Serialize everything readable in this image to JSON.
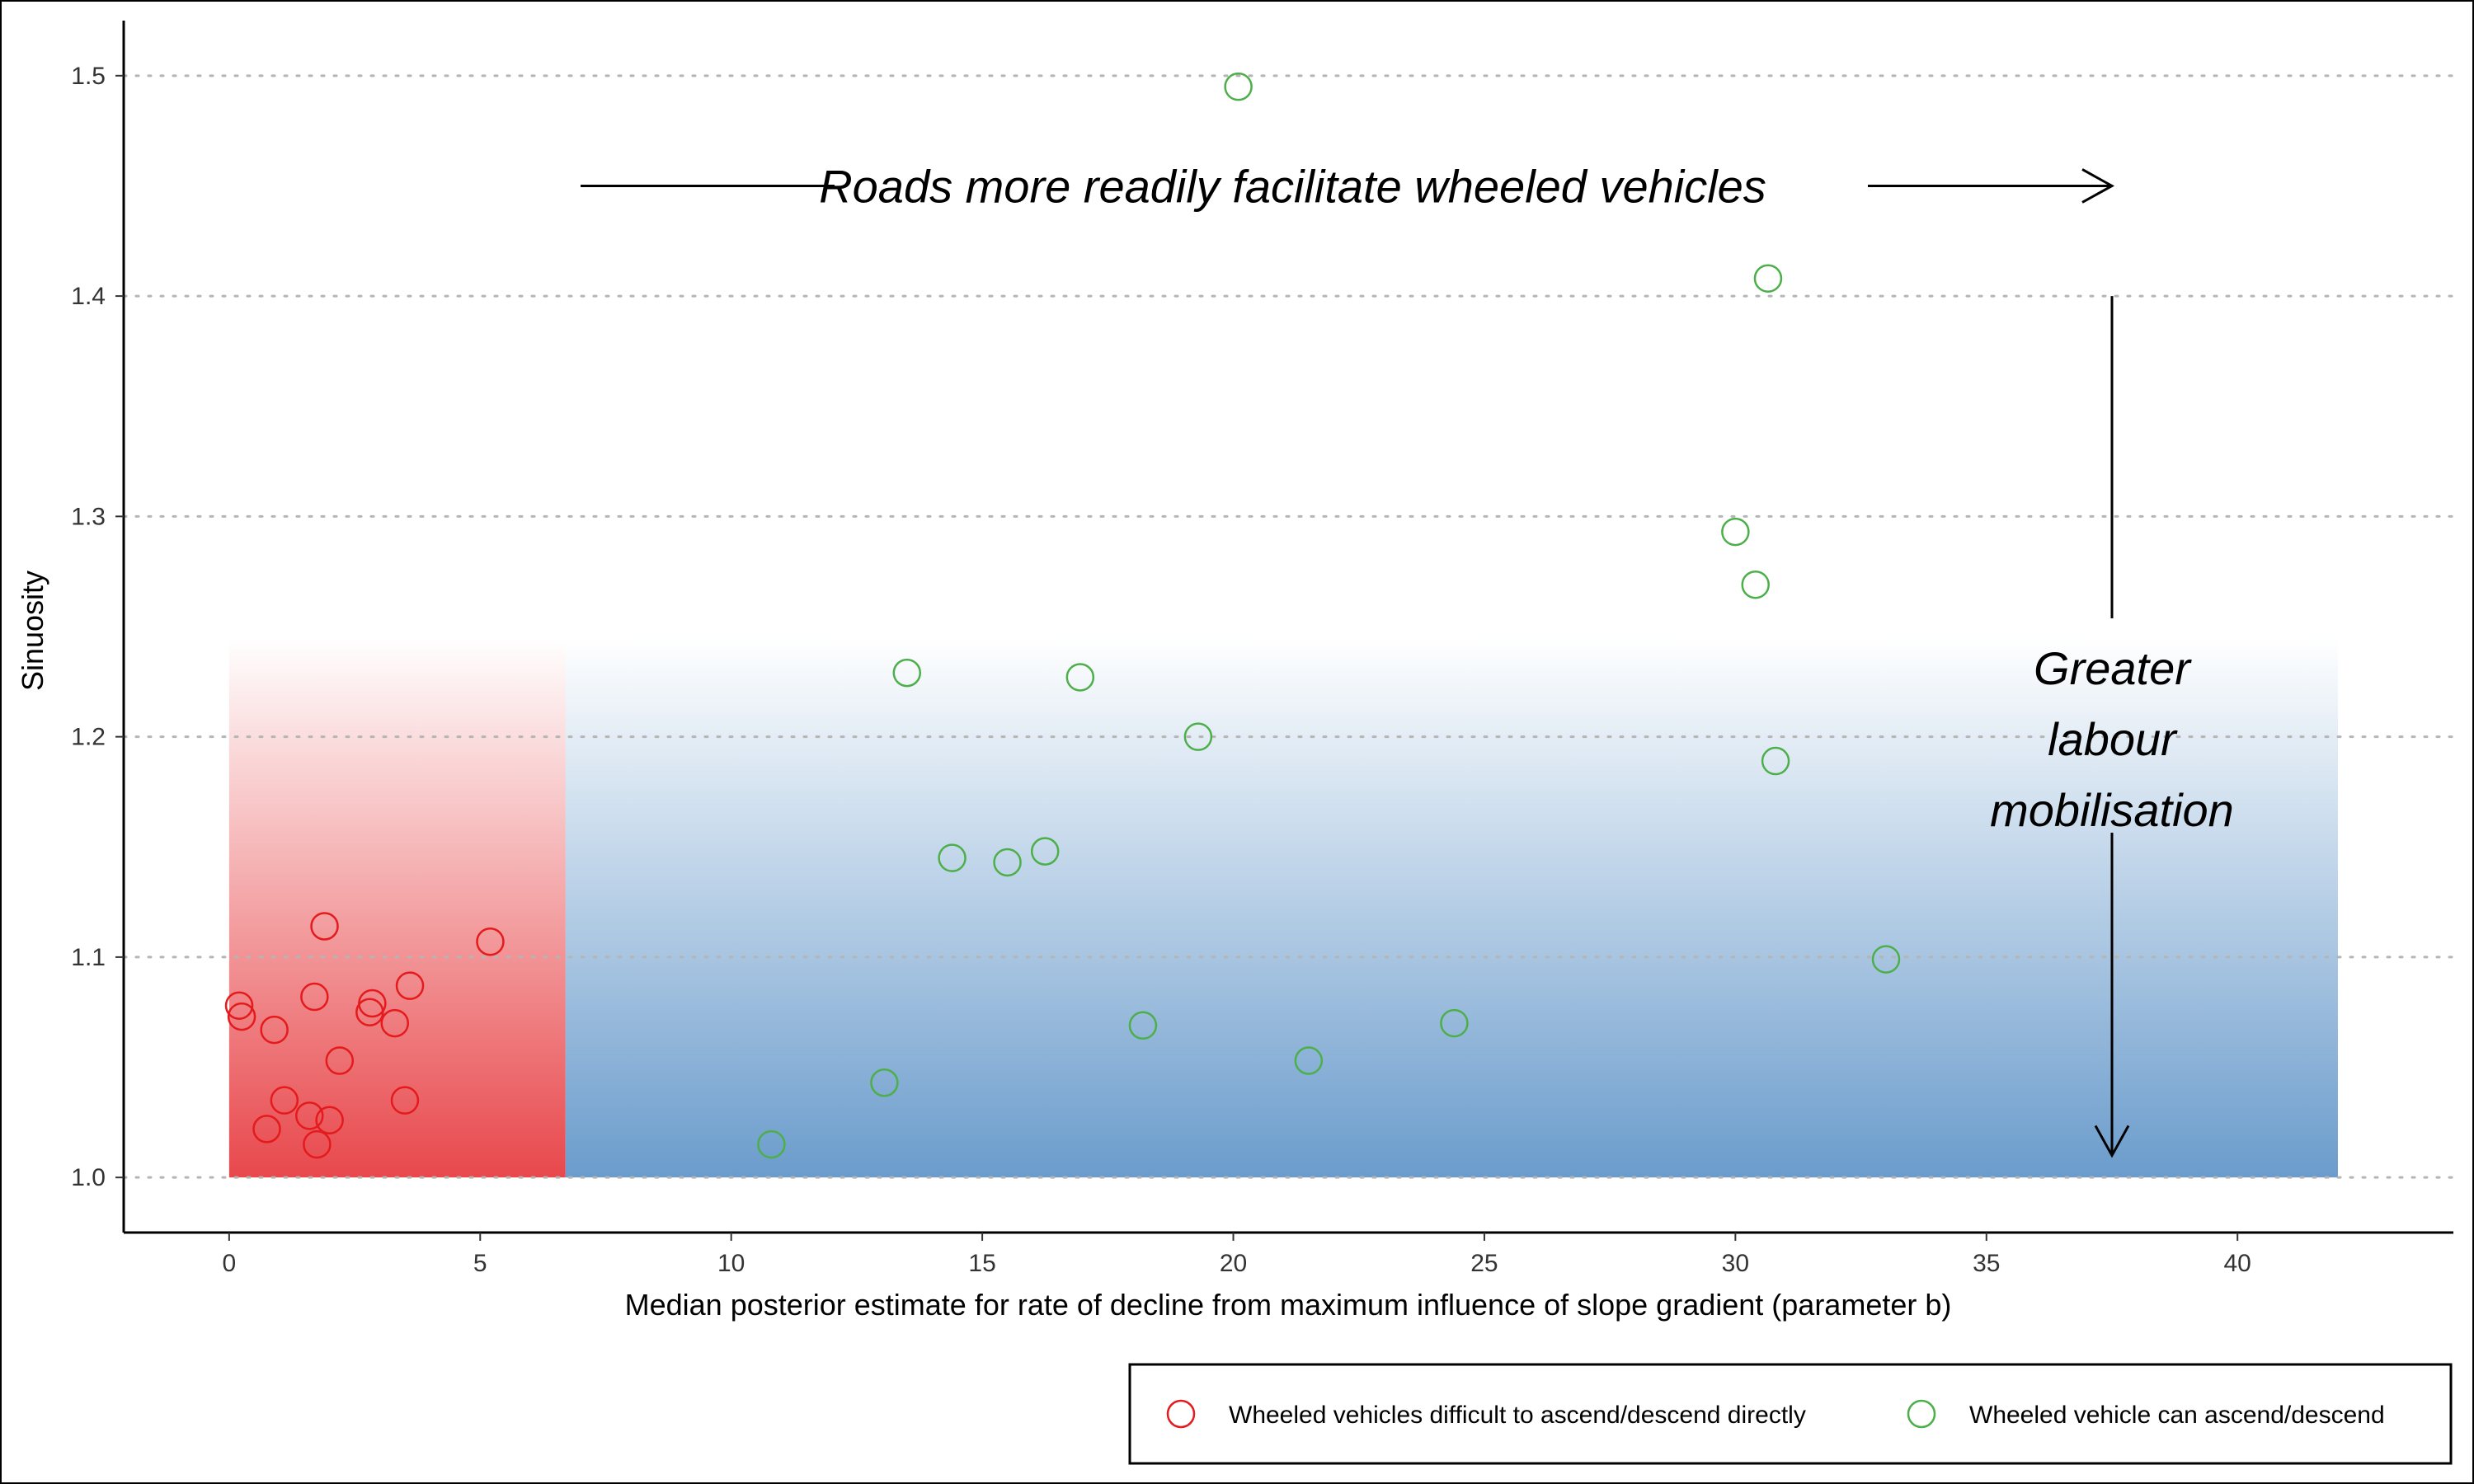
{
  "chart_data": {
    "type": "scatter",
    "title": "",
    "xlabel": "Median posterior estimate for rate of decline from maximum influence of slope gradient (parameter b)",
    "ylabel": "Sinuosity",
    "xlim": [
      -2.1,
      44.3
    ],
    "ylim": [
      0.975,
      1.525
    ],
    "xticks": [
      "0",
      "5",
      "10",
      "15",
      "20",
      "25",
      "30",
      "35",
      "40"
    ],
    "yticks": [
      "1.0",
      "1.1",
      "1.2",
      "1.3",
      "1.4",
      "1.5"
    ],
    "grid": "horizontal dotted",
    "legend_position": "bottom-right",
    "shaded_regions": [
      {
        "x": [
          0,
          6.7
        ],
        "y": [
          1.0,
          1.245
        ],
        "color": "#e8484c"
      },
      {
        "x": [
          6.7,
          42
        ],
        "y": [
          1.0,
          1.245
        ],
        "color": "#6b9ccc"
      }
    ],
    "annotations": {
      "horizontal_arrow": {
        "text": "Roads more readily facilitate wheeled vehicles",
        "x_from": 7,
        "x_to": 37.5,
        "y": 1.45
      },
      "vertical_arrow": {
        "lines": [
          "Greater",
          "labour",
          "mobilisation"
        ],
        "x": 37.5,
        "y_from": 1.4,
        "y_to": 1.01
      }
    },
    "series": [
      {
        "name": "Wheeled vehicles difficult to ascend/descend directly",
        "color": "#e41a1c",
        "points": [
          [
            0.2,
            1.078
          ],
          [
            0.25,
            1.073
          ],
          [
            0.9,
            1.067
          ],
          [
            1.1,
            1.035
          ],
          [
            0.75,
            1.022
          ],
          [
            1.6,
            1.028
          ],
          [
            1.75,
            1.015
          ],
          [
            1.7,
            1.082
          ],
          [
            1.9,
            1.114
          ],
          [
            2.0,
            1.026
          ],
          [
            2.2,
            1.053
          ],
          [
            2.8,
            1.075
          ],
          [
            2.85,
            1.079
          ],
          [
            3.3,
            1.07
          ],
          [
            3.5,
            1.035
          ],
          [
            3.6,
            1.087
          ],
          [
            5.2,
            1.107
          ]
        ]
      },
      {
        "name": "Wheeled vehicle can ascend/descend",
        "color": "#4daf4a",
        "points": [
          [
            10.8,
            1.015
          ],
          [
            13.05,
            1.043
          ],
          [
            13.5,
            1.229
          ],
          [
            14.4,
            1.145
          ],
          [
            15.5,
            1.143
          ],
          [
            16.25,
            1.148
          ],
          [
            16.95,
            1.227
          ],
          [
            18.2,
            1.069
          ],
          [
            19.3,
            1.2
          ],
          [
            20.1,
            1.495
          ],
          [
            21.5,
            1.053
          ],
          [
            24.4,
            1.07
          ],
          [
            30.0,
            1.293
          ],
          [
            30.4,
            1.269
          ],
          [
            30.65,
            1.408
          ],
          [
            30.8,
            1.189
          ],
          [
            33.0,
            1.099
          ]
        ]
      }
    ]
  }
}
